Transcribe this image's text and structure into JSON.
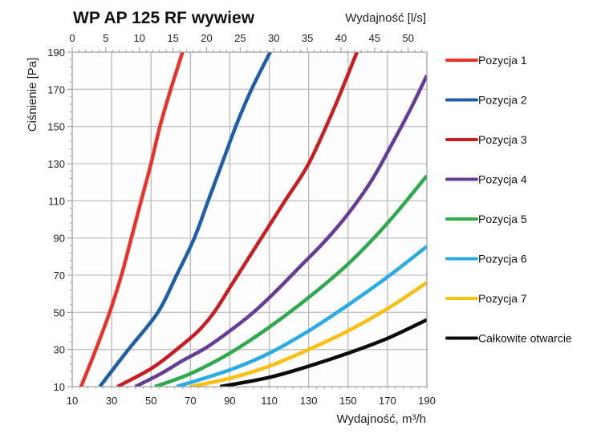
{
  "chart_data": {
    "type": "line",
    "title": "WP AP 125 RF wywiew",
    "xlabel": "Wydajność, m³/h",
    "x2label": "Wydajność [l/s]",
    "ylabel": "Ciśnienie [Pa]",
    "xlim": [
      10,
      190
    ],
    "ylim": [
      10,
      190
    ],
    "x2lim": [
      0,
      52.78
    ],
    "grid": true,
    "legend_position": "right",
    "x_ticks": [
      "10",
      "30",
      "50",
      "70",
      "90",
      "110",
      "130",
      "150",
      "170",
      "190"
    ],
    "x_tick_values": [
      10,
      30,
      50,
      70,
      90,
      110,
      130,
      150,
      170,
      190
    ],
    "x2_ticks": [
      "0",
      "5",
      "10",
      "15",
      "20",
      "25",
      "30",
      "35",
      "40",
      "45",
      "50"
    ],
    "x2_tick_values": [
      0,
      5,
      10,
      15,
      20,
      25,
      30,
      35,
      40,
      45,
      50
    ],
    "y_ticks": [
      "10",
      "30",
      "50",
      "70",
      "90",
      "110",
      "130",
      "150",
      "170",
      "190"
    ],
    "y_tick_values": [
      10,
      30,
      50,
      70,
      90,
      110,
      130,
      150,
      170,
      190
    ],
    "series": [
      {
        "name": "Pozycja 1",
        "color": "#e8322a",
        "points": [
          [
            14.5,
            10
          ],
          [
            22,
            30
          ],
          [
            29,
            50
          ],
          [
            35,
            70
          ],
          [
            40,
            90
          ],
          [
            45,
            110
          ],
          [
            50,
            130
          ],
          [
            54.5,
            150
          ],
          [
            60,
            170
          ],
          [
            66,
            190
          ]
        ]
      },
      {
        "name": "Pozycja 2",
        "color": "#1f5fa8",
        "points": [
          [
            24,
            10
          ],
          [
            38.5,
            30
          ],
          [
            53.5,
            50
          ],
          [
            63,
            70
          ],
          [
            72,
            90
          ],
          [
            79,
            110
          ],
          [
            86,
            130
          ],
          [
            93,
            150
          ],
          [
            101,
            170
          ],
          [
            110.5,
            190
          ]
        ]
      },
      {
        "name": "Pozycja 3",
        "color": "#c81e23",
        "points": [
          [
            33,
            10
          ],
          [
            50.5,
            20
          ],
          [
            63,
            30
          ],
          [
            74,
            40
          ],
          [
            82,
            50
          ],
          [
            91,
            65
          ],
          [
            100,
            80
          ],
          [
            109,
            95
          ],
          [
            118,
            110
          ],
          [
            130,
            130
          ],
          [
            143,
            160
          ],
          [
            154.5,
            190
          ]
        ]
      },
      {
        "name": "Pozycja 4",
        "color": "#663d96",
        "points": [
          [
            42,
            10
          ],
          [
            55,
            17
          ],
          [
            66,
            24
          ],
          [
            78,
            31
          ],
          [
            90,
            40
          ],
          [
            102,
            50
          ],
          [
            114,
            62
          ],
          [
            126,
            75
          ],
          [
            138,
            88
          ],
          [
            150,
            103
          ],
          [
            162,
            121
          ],
          [
            172,
            140
          ],
          [
            182,
            160
          ],
          [
            190,
            177.5
          ]
        ]
      },
      {
        "name": "Pozycja 5",
        "color": "#2ea94e",
        "points": [
          [
            52,
            10
          ],
          [
            70,
            17
          ],
          [
            90,
            28
          ],
          [
            110,
            42
          ],
          [
            130,
            58
          ],
          [
            150,
            76
          ],
          [
            170,
            98
          ],
          [
            190,
            123.5
          ]
        ]
      },
      {
        "name": "Pozycja 6",
        "color": "#2aabe2",
        "points": [
          [
            63,
            10
          ],
          [
            90,
            19
          ],
          [
            110,
            28
          ],
          [
            130,
            40
          ],
          [
            150,
            54
          ],
          [
            170,
            69
          ],
          [
            190,
            85.5
          ]
        ]
      },
      {
        "name": "Pozycja 7",
        "color": "#fbbf12",
        "points": [
          [
            70,
            10
          ],
          [
            90,
            14.5
          ],
          [
            110,
            21
          ],
          [
            130,
            30
          ],
          [
            150,
            40
          ],
          [
            170,
            52
          ],
          [
            190,
            66
          ]
        ]
      },
      {
        "name": "Całkowite otwarcie",
        "color": "#0a0a0a",
        "points": [
          [
            85,
            10
          ],
          [
            110,
            15
          ],
          [
            130,
            21
          ],
          [
            150,
            28
          ],
          [
            170,
            36
          ],
          [
            190,
            46
          ]
        ]
      }
    ]
  }
}
